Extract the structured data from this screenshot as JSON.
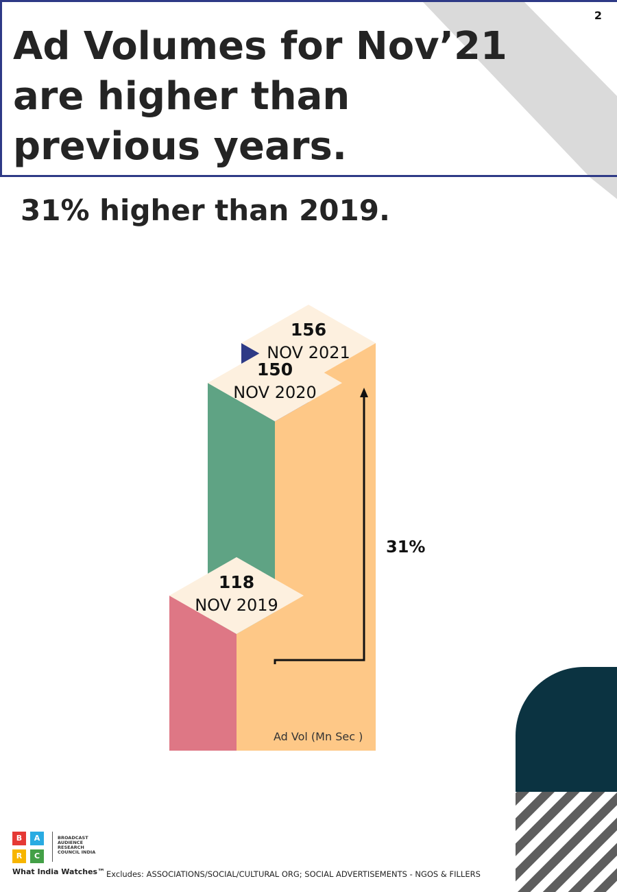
{
  "page_number": "2",
  "headline": "Ad Volumes for Nov’21 are higher than previous years.",
  "subhead": "31% higher than 2019.",
  "chart_data": {
    "type": "bar",
    "style": "isometric-steps",
    "categories": [
      "NOV 2019",
      "NOV 2020",
      "NOV 2021"
    ],
    "values": [
      118,
      150,
      156
    ],
    "unit_label": "Ad Vol (Mn Sec )",
    "annotation": "31%",
    "colors": [
      "#de7785",
      "#5fa384",
      "#2e3a86"
    ],
    "accent_color": "#fec887",
    "top_color": "#fdf0df"
  },
  "footnote": "Excludes: ASSOCIATIONS/SOCIAL/CULTURAL ORG; SOCIAL ADVERTISEMENTS - NGOS & FILLERS",
  "logo": {
    "letters": [
      "B",
      "A",
      "R",
      "C"
    ],
    "letter_colors": [
      "#e53935",
      "#29abe2",
      "#f7b500",
      "#43a047"
    ],
    "org_name": "BROADCAST AUDIENCE RESEARCH COUNCIL INDIA",
    "tagline": "What India Watches™"
  }
}
